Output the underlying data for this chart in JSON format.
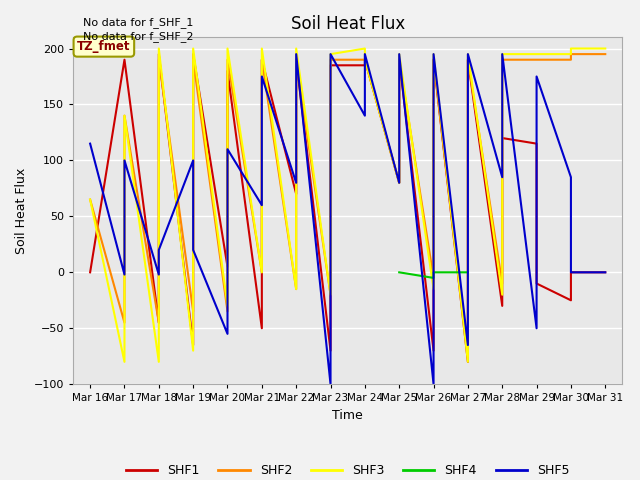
{
  "title": "Soil Heat Flux",
  "xlabel": "Time",
  "ylabel": "Soil Heat Flux",
  "ylim": [
    -100,
    210
  ],
  "text_no_data": [
    "No data for f_SHF_1",
    "No data for f_SHF_2"
  ],
  "tz_label": "TZ_fmet",
  "x_labels": [
    "Mar 16",
    "Mar 17",
    "Mar 18",
    "Mar 19",
    "Mar 20",
    "Mar 21",
    "Mar 22",
    "Mar 23",
    "Mar 24",
    "Mar 25",
    "Mar 26",
    "Mar 27",
    "Mar 28",
    "Mar 29",
    "Mar 30",
    "Mar 31"
  ],
  "series": {
    "SHF1": {
      "color": "#cc0000",
      "x": [
        0,
        1,
        2,
        2,
        3,
        3,
        4,
        4,
        5,
        5,
        6,
        6,
        7,
        7,
        8,
        8,
        9,
        9,
        10,
        10,
        11,
        11,
        12,
        12,
        13,
        13,
        14,
        14,
        15
      ],
      "y": [
        0,
        190,
        -45,
        195,
        -65,
        195,
        5,
        180,
        -50,
        190,
        70,
        190,
        -70,
        185,
        185,
        190,
        80,
        190,
        -70,
        190,
        -80,
        190,
        -30,
        120,
        115,
        -10,
        -25,
        0,
        0
      ]
    },
    "SHF2": {
      "color": "#ff8800",
      "x": [
        0,
        1,
        1,
        2,
        2,
        3,
        3,
        4,
        4,
        5,
        5,
        6,
        6,
        7,
        7,
        8,
        8,
        9,
        9,
        10,
        10,
        11,
        11,
        12,
        12,
        13,
        13,
        14,
        14,
        15
      ],
      "y": [
        65,
        -45,
        140,
        -45,
        190,
        -35,
        190,
        -35,
        190,
        0,
        190,
        -15,
        190,
        -20,
        190,
        190,
        190,
        80,
        190,
        -5,
        190,
        -75,
        190,
        -10,
        190,
        190,
        190,
        190,
        195,
        195
      ]
    },
    "SHF3": {
      "color": "#ffff00",
      "x": [
        0,
        1,
        1,
        2,
        2,
        3,
        3,
        4,
        4,
        5,
        5,
        6,
        6,
        7,
        7,
        8,
        8,
        9,
        9,
        10,
        10,
        11,
        11,
        12,
        12,
        13,
        13,
        14,
        14,
        15
      ],
      "y": [
        65,
        -80,
        140,
        -80,
        200,
        -70,
        200,
        -30,
        200,
        0,
        200,
        -15,
        200,
        -20,
        195,
        200,
        190,
        80,
        195,
        -15,
        195,
        -80,
        195,
        -20,
        195,
        195,
        195,
        195,
        200,
        200
      ]
    },
    "SHF4": {
      "color": "#00cc00",
      "x": [
        9,
        10,
        10,
        11
      ],
      "y": [
        0,
        -5,
        0,
        0
      ]
    },
    "SHF5": {
      "color": "#0000cc",
      "x": [
        0,
        1,
        1,
        2,
        2,
        3,
        3,
        4,
        4,
        5,
        5,
        6,
        6,
        7,
        7,
        8,
        8,
        9,
        9,
        10,
        10,
        11,
        11,
        12,
        12,
        13,
        13,
        14,
        14,
        15
      ],
      "y": [
        115,
        -2,
        100,
        -2,
        20,
        100,
        20,
        -55,
        110,
        60,
        175,
        80,
        195,
        -100,
        195,
        140,
        195,
        80,
        195,
        -100,
        195,
        -65,
        195,
        85,
        195,
        -50,
        175,
        85,
        0,
        0
      ]
    }
  }
}
